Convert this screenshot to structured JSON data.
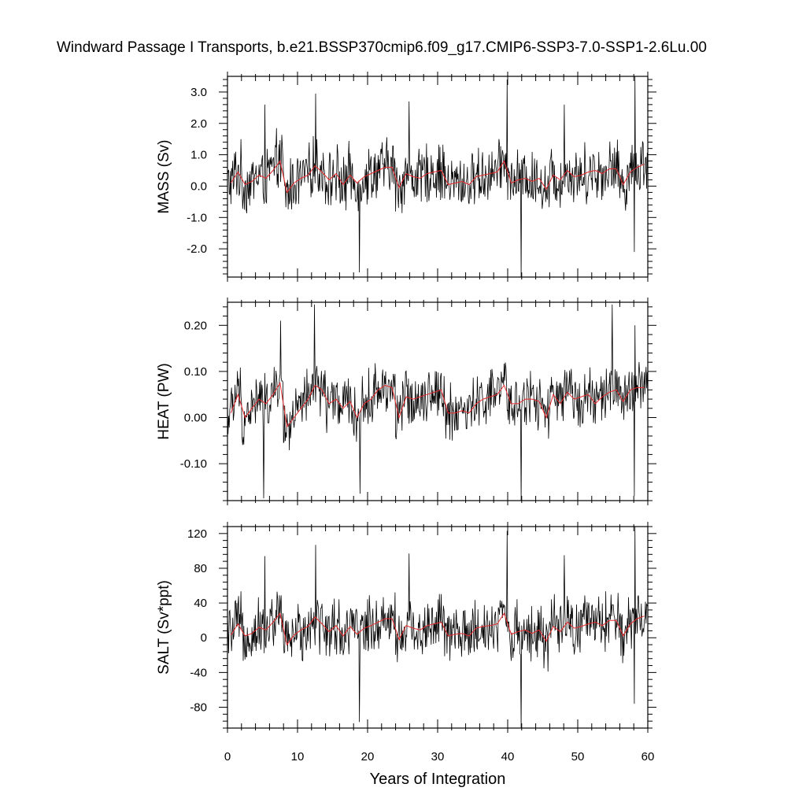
{
  "title": "Windward Passage I Transports, b.e21.BSSP370cmip6.f09_g17.CMIP6-SSP3-7.0-SSP1-2.6Lu.00",
  "xlabel": "Years of Integration",
  "chart_data": [
    {
      "type": "line",
      "ylabel": "MASS (Sv)",
      "xlim": [
        0,
        60
      ],
      "ylim": [
        -2.9,
        3.5
      ],
      "xticks": [
        0,
        10,
        20,
        30,
        40,
        50,
        60
      ],
      "yticks": [
        -2.0,
        -1.0,
        0.0,
        1.0,
        2.0,
        3.0
      ],
      "yticklabels": [
        "-2.0",
        "-1.0",
        "0.0",
        "1.0",
        "2.0",
        "3.0"
      ],
      "series": [
        {
          "role": "monthly",
          "color": "#000000",
          "spread": 0.95,
          "spikes": [
            [
              5.3,
              2.6
            ],
            [
              12.6,
              2.95
            ],
            [
              18.8,
              -2.75
            ],
            [
              25.9,
              2.7
            ],
            [
              39.9,
              3.4
            ],
            [
              41.9,
              -2.9
            ],
            [
              48.1,
              2.6
            ],
            [
              58.2,
              3.5
            ],
            [
              58.1,
              -2.1
            ]
          ]
        },
        {
          "role": "annual_mean",
          "color": "#e8282b",
          "x": [
            0.5,
            1.5,
            2.5,
            3.5,
            4.5,
            5.5,
            6.5,
            7.5,
            8.5,
            9.5,
            10.5,
            11.5,
            12.5,
            13.5,
            14.5,
            15.5,
            16.5,
            17.5,
            18.5,
            19.5,
            20.5,
            21.5,
            22.5,
            23.5,
            24.5,
            25.5,
            26.5,
            27.5,
            28.5,
            29.5,
            30.5,
            31.5,
            32.5,
            33.5,
            34.5,
            35.5,
            36.5,
            37.5,
            38.5,
            39.5,
            40.5,
            41.5,
            42.5,
            43.5,
            44.5,
            45.5,
            46.5,
            47.5,
            48.5,
            49.5,
            50.5,
            51.5,
            52.5,
            53.5,
            54.5,
            55.5,
            56.5,
            57.5,
            58.5,
            59.5
          ],
          "y": [
            0.1,
            0.45,
            0.05,
            0.15,
            0.35,
            0.25,
            0.5,
            0.8,
            -0.2,
            0.1,
            0.25,
            0.35,
            0.65,
            0.45,
            0.2,
            0.4,
            0.05,
            0.35,
            0.1,
            0.3,
            0.4,
            0.5,
            0.6,
            0.6,
            -0.05,
            0.4,
            0.3,
            0.25,
            0.4,
            0.45,
            0.5,
            0.05,
            0.1,
            0.15,
            0.05,
            0.3,
            0.35,
            0.4,
            0.45,
            0.8,
            0.1,
            0.2,
            0.25,
            0.15,
            0.25,
            -0.1,
            0.35,
            0.2,
            0.5,
            0.3,
            0.35,
            0.45,
            0.5,
            0.4,
            0.55,
            0.55,
            0.05,
            0.45,
            0.6,
            0.7
          ]
        }
      ]
    },
    {
      "type": "line",
      "ylabel": "HEAT (PW)",
      "xlim": [
        0,
        60
      ],
      "ylim": [
        -0.18,
        0.25
      ],
      "xticks": [
        0,
        10,
        20,
        30,
        40,
        50,
        60
      ],
      "yticks": [
        -0.1,
        0.0,
        0.1,
        0.2
      ],
      "yticklabels": [
        "-0.10",
        "0.00",
        "0.10",
        "0.20"
      ],
      "series": [
        {
          "role": "monthly",
          "color": "#000000",
          "spread": 0.062,
          "spikes": [
            [
              5.2,
              -0.175
            ],
            [
              7.6,
              0.21
            ],
            [
              12.4,
              0.245
            ],
            [
              18.9,
              -0.165
            ],
            [
              41.9,
              -0.18
            ],
            [
              54.9,
              0.245
            ],
            [
              58.1,
              -0.17
            ],
            [
              58.2,
              0.2
            ]
          ]
        },
        {
          "role": "annual_mean",
          "color": "#e8282b",
          "x": [
            0.5,
            1.5,
            2.5,
            3.5,
            4.5,
            5.5,
            6.5,
            7.5,
            8.5,
            9.5,
            10.5,
            11.5,
            12.5,
            13.5,
            14.5,
            15.5,
            16.5,
            17.5,
            18.5,
            19.5,
            20.5,
            21.5,
            22.5,
            23.5,
            24.5,
            25.5,
            26.5,
            27.5,
            28.5,
            29.5,
            30.5,
            31.5,
            32.5,
            33.5,
            34.5,
            35.5,
            36.5,
            37.5,
            38.5,
            39.5,
            40.5,
            41.5,
            42.5,
            43.5,
            44.5,
            45.5,
            46.5,
            47.5,
            48.5,
            49.5,
            50.5,
            51.5,
            52.5,
            53.5,
            54.5,
            55.5,
            56.5,
            57.5,
            58.5,
            59.5
          ],
          "y": [
            0.01,
            0.05,
            0.0,
            0.02,
            0.04,
            0.03,
            0.05,
            0.075,
            -0.02,
            0.0,
            0.02,
            0.04,
            0.07,
            0.06,
            0.03,
            0.04,
            0.02,
            0.035,
            0.0,
            0.03,
            0.04,
            0.06,
            0.07,
            0.065,
            0.0,
            0.045,
            0.04,
            0.045,
            0.05,
            0.055,
            0.06,
            0.01,
            0.01,
            0.015,
            0.01,
            0.03,
            0.04,
            0.045,
            0.05,
            0.07,
            0.03,
            0.03,
            0.04,
            0.04,
            0.035,
            0.0,
            0.05,
            0.03,
            0.055,
            0.04,
            0.045,
            0.05,
            0.03,
            0.045,
            0.055,
            0.06,
            0.035,
            0.06,
            0.065,
            0.065
          ]
        }
      ]
    },
    {
      "type": "line",
      "ylabel": "SALT (Sv*ppt)",
      "xlim": [
        0,
        60
      ],
      "ylim": [
        -104,
        128
      ],
      "xticks": [
        0,
        10,
        20,
        30,
        40,
        50,
        60
      ],
      "yticks": [
        -80,
        -40,
        0,
        40,
        80,
        120
      ],
      "yticklabels": [
        "-80",
        "-40",
        "0",
        "40",
        "80",
        "120"
      ],
      "series": [
        {
          "role": "monthly",
          "color": "#000000",
          "spread": 34,
          "spikes": [
            [
              5.3,
              94
            ],
            [
              12.6,
              107
            ],
            [
              18.8,
              -97
            ],
            [
              25.9,
              97
            ],
            [
              39.9,
              123
            ],
            [
              41.9,
              -104
            ],
            [
              48.1,
              95
            ],
            [
              58.2,
              128
            ],
            [
              58.1,
              -76
            ]
          ]
        },
        {
          "role": "annual_mean",
          "color": "#e8282b",
          "x": [
            0.5,
            1.5,
            2.5,
            3.5,
            4.5,
            5.5,
            6.5,
            7.5,
            8.5,
            9.5,
            10.5,
            11.5,
            12.5,
            13.5,
            14.5,
            15.5,
            16.5,
            17.5,
            18.5,
            19.5,
            20.5,
            21.5,
            22.5,
            23.5,
            24.5,
            25.5,
            26.5,
            27.5,
            28.5,
            29.5,
            30.5,
            31.5,
            32.5,
            33.5,
            34.5,
            35.5,
            36.5,
            37.5,
            38.5,
            39.5,
            40.5,
            41.5,
            42.5,
            43.5,
            44.5,
            45.5,
            46.5,
            47.5,
            48.5,
            49.5,
            50.5,
            51.5,
            52.5,
            53.5,
            54.5,
            55.5,
            56.5,
            57.5,
            58.5,
            59.5
          ],
          "y": [
            3,
            16,
            2,
            5,
            12,
            9,
            18,
            28,
            -8,
            3,
            9,
            13,
            24,
            16,
            7,
            14,
            2,
            13,
            4,
            11,
            14,
            18,
            22,
            22,
            -2,
            14,
            11,
            9,
            14,
            16,
            18,
            2,
            4,
            5,
            2,
            11,
            13,
            14,
            16,
            28,
            4,
            7,
            9,
            5,
            9,
            -4,
            13,
            7,
            18,
            11,
            13,
            16,
            18,
            14,
            20,
            20,
            2,
            16,
            22,
            25
          ]
        }
      ]
    }
  ]
}
